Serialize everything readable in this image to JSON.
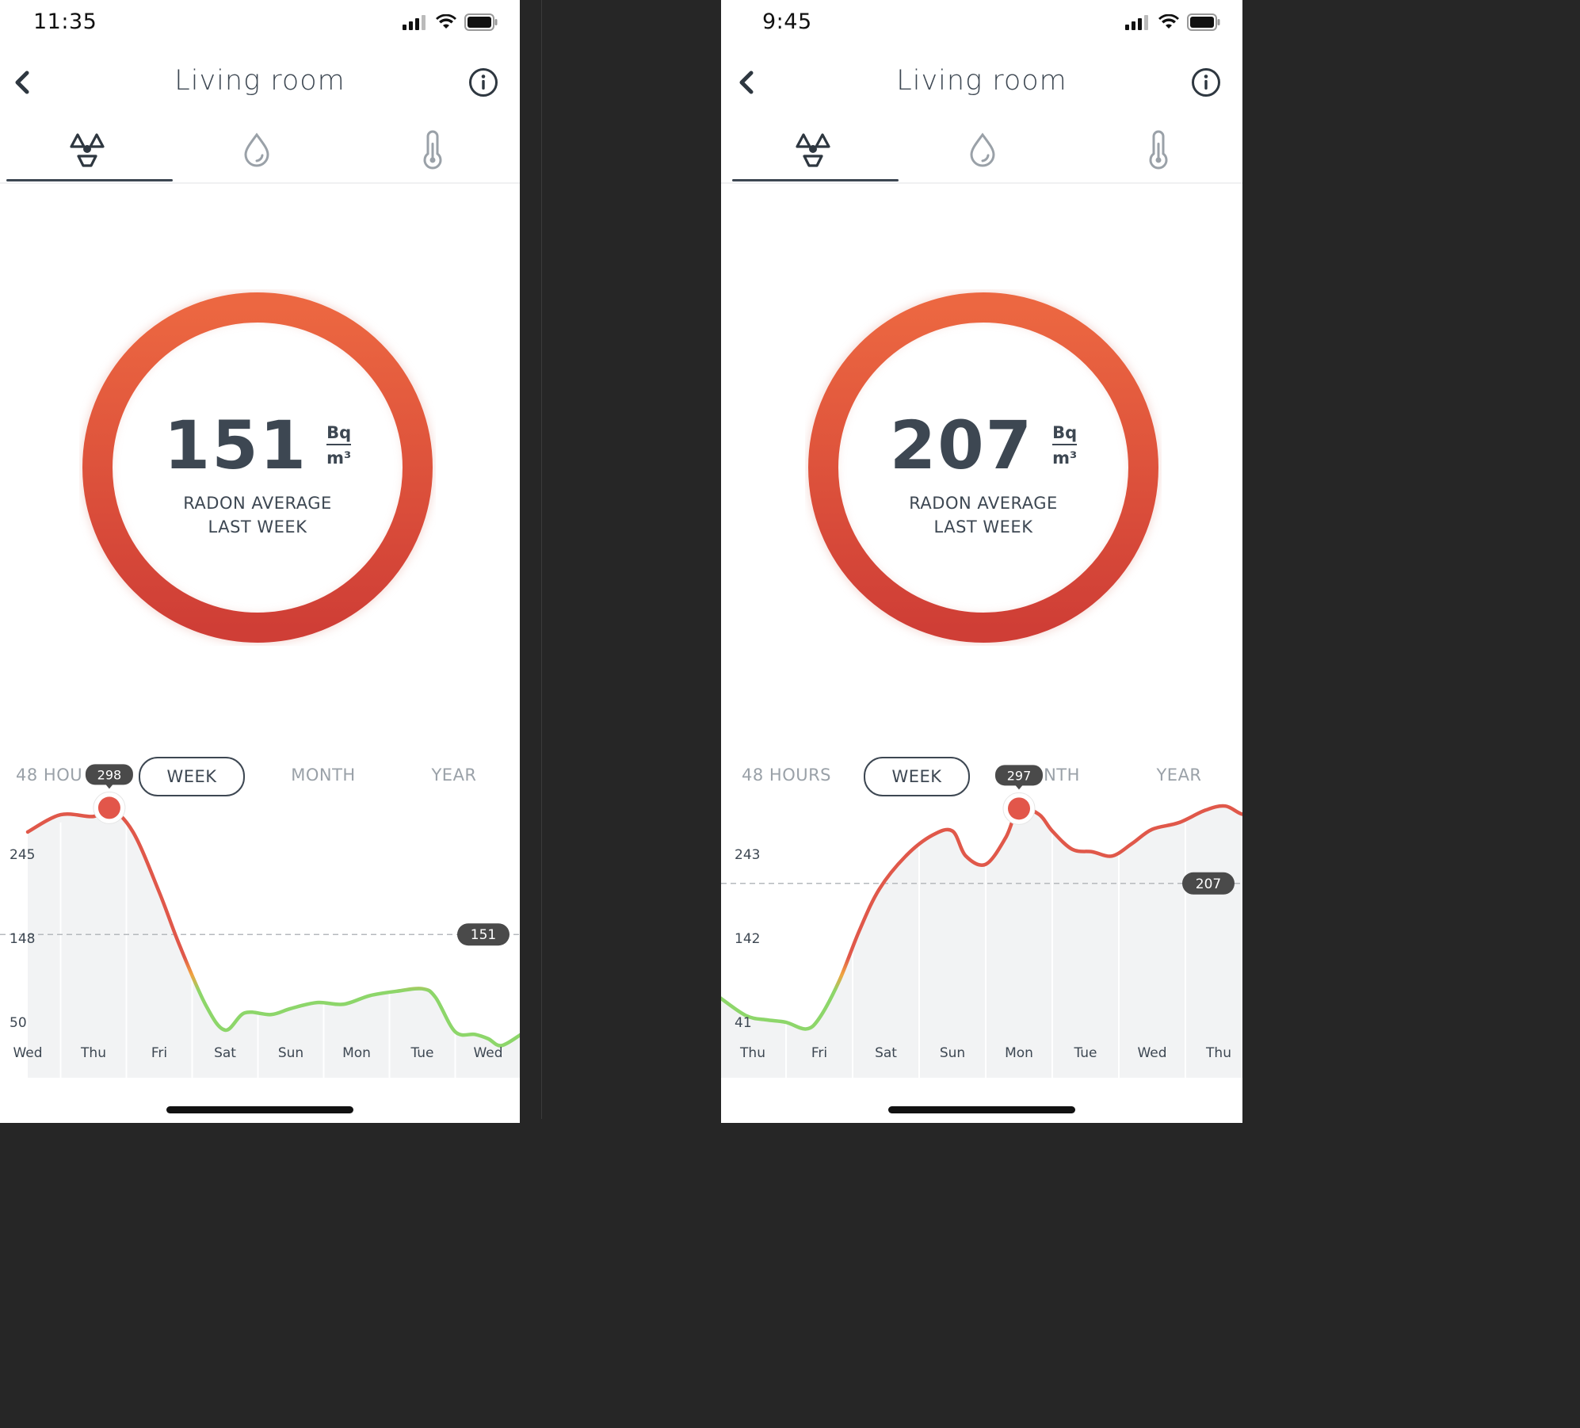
{
  "left": {
    "status": {
      "time": "11:35"
    },
    "nav": {
      "title": "Living room"
    },
    "tabs": [
      {
        "id": "radon",
        "icon": "radon-icon",
        "active": true
      },
      {
        "id": "humidity",
        "icon": "humidity-drop-icon",
        "active": false
      },
      {
        "id": "temperature",
        "icon": "thermometer-icon",
        "active": false
      }
    ],
    "summary": {
      "value": "151",
      "unit_top": "Bq",
      "unit_bottom": "m³",
      "label_line1": "RADON AVERAGE",
      "label_line2": "LAST WEEK"
    },
    "periods": [
      {
        "label": "48 HOU",
        "active": false
      },
      {
        "label": "WEEK",
        "active": true
      },
      {
        "label": "MONTH",
        "active": false
      },
      {
        "label": "YEAR",
        "active": false
      }
    ],
    "chart_data": {
      "type": "line",
      "x": [
        "Wed",
        "Thu",
        "Fri",
        "Sat",
        "Sun",
        "Mon",
        "Tue",
        "Wed"
      ],
      "y_ticks": [
        "245",
        "148",
        "50"
      ],
      "y_tick_values": [
        245,
        148,
        50
      ],
      "average": {
        "label": "151",
        "value": 151
      },
      "marker": {
        "label": "298",
        "value": 298,
        "day_index": 1.24
      },
      "series": [
        {
          "points": [
            [
              0,
              270
            ],
            [
              0.5,
              290
            ],
            [
              1.0,
              288
            ],
            [
              1.24,
              298
            ],
            [
              1.6,
              270
            ],
            [
              2.0,
              200
            ],
            [
              2.3,
              140
            ],
            [
              2.7,
              70
            ],
            [
              3.0,
              40
            ],
            [
              3.3,
              60
            ],
            [
              3.7,
              58
            ],
            [
              4.0,
              65
            ],
            [
              4.4,
              72
            ],
            [
              4.8,
              70
            ],
            [
              5.2,
              80
            ],
            [
              5.6,
              85
            ],
            [
              6.0,
              88
            ],
            [
              6.2,
              78
            ],
            [
              6.5,
              38
            ],
            [
              6.8,
              35
            ],
            [
              7.0,
              30
            ],
            [
              7.2,
              22
            ],
            [
              7.5,
              35
            ]
          ]
        }
      ]
    }
  },
  "right": {
    "status": {
      "time": "9:45"
    },
    "nav": {
      "title": "Living room"
    },
    "tabs": [
      {
        "id": "radon",
        "icon": "radon-icon",
        "active": true
      },
      {
        "id": "humidity",
        "icon": "humidity-drop-icon",
        "active": false
      },
      {
        "id": "temperature",
        "icon": "thermometer-icon",
        "active": false
      }
    ],
    "summary": {
      "value": "207",
      "unit_top": "Bq",
      "unit_bottom": "m³",
      "label_line1": "RADON AVERAGE",
      "label_line2": "LAST WEEK"
    },
    "periods": [
      {
        "label": "48 HOURS",
        "active": false
      },
      {
        "label": "WEEK",
        "active": true
      },
      {
        "label": "NTH",
        "active": false
      },
      {
        "label": "YEAR",
        "active": false
      }
    ],
    "chart_data": {
      "type": "line",
      "x": [
        "Thu",
        "Fri",
        "Sat",
        "Sun",
        "Mon",
        "Tue",
        "Wed",
        "Thu"
      ],
      "y_ticks": [
        "243",
        "142",
        "41"
      ],
      "y_tick_values": [
        243,
        142,
        41
      ],
      "average": {
        "label": "207",
        "value": 207
      },
      "marker": {
        "label": "297",
        "value": 297,
        "day_index": 4.0
      },
      "series": [
        {
          "points": [
            [
              -0.5,
              70
            ],
            [
              -0.1,
              48
            ],
            [
              0.2,
              43
            ],
            [
              0.5,
              40
            ],
            [
              0.8,
              32
            ],
            [
              1.0,
              45
            ],
            [
              1.3,
              90
            ],
            [
              1.6,
              150
            ],
            [
              1.9,
              200
            ],
            [
              2.3,
              240
            ],
            [
              2.7,
              265
            ],
            [
              3.0,
              270
            ],
            [
              3.2,
              240
            ],
            [
              3.5,
              230
            ],
            [
              3.8,
              262
            ],
            [
              4.0,
              297
            ],
            [
              4.3,
              290
            ],
            [
              4.5,
              270
            ],
            [
              4.8,
              248
            ],
            [
              5.1,
              245
            ],
            [
              5.4,
              240
            ],
            [
              5.7,
              255
            ],
            [
              6.0,
              272
            ],
            [
              6.4,
              280
            ],
            [
              6.8,
              295
            ],
            [
              7.1,
              300
            ],
            [
              7.4,
              290
            ],
            [
              7.7,
              305
            ]
          ]
        }
      ]
    }
  },
  "colors": {
    "ring_top": "#ec6741",
    "ring_bottom": "#cf3e36",
    "line_red": "#e0584a",
    "line_orange": "#f1a340",
    "line_green": "#8dd66a",
    "marker": "#e2564a",
    "badge": "#4a4a4a"
  }
}
